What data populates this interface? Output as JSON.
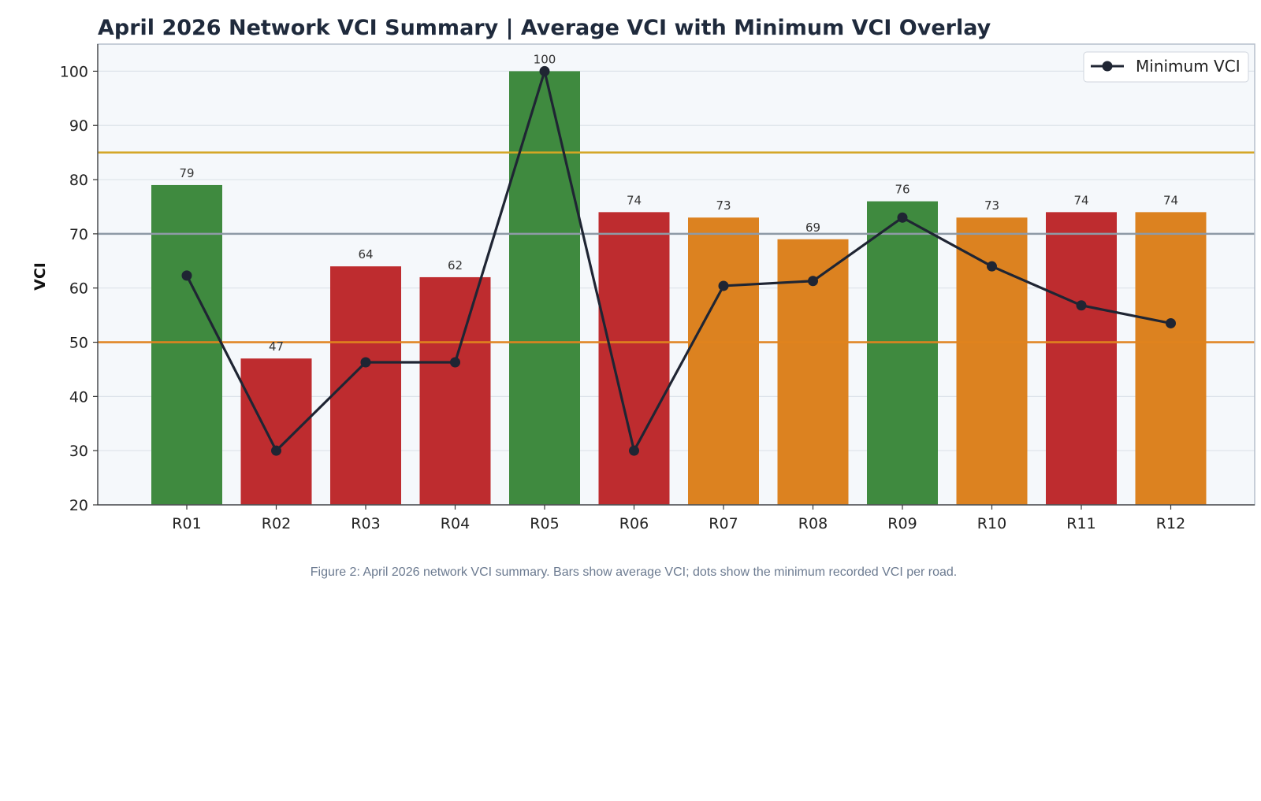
{
  "chart_data": {
    "type": "bar",
    "title": "April 2026 Network VCI Summary | Average VCI with Minimum VCI Overlay",
    "xlabel": "",
    "ylabel": "VCI",
    "ylim": [
      20,
      105
    ],
    "yticks": [
      20,
      30,
      40,
      50,
      60,
      70,
      80,
      90,
      100
    ],
    "grid": true,
    "legend_position": "top-right",
    "categories": [
      "R01",
      "R02",
      "R03",
      "R04",
      "R05",
      "R06",
      "R07",
      "R08",
      "R09",
      "R10",
      "R11",
      "R12"
    ],
    "series": [
      {
        "kind": "bar",
        "values": [
          79,
          47,
          64,
          62,
          100,
          74,
          73,
          69,
          76,
          73,
          74,
          74
        ],
        "value_labels": [
          "79",
          "47",
          "64",
          "62",
          "100",
          "74",
          "73",
          "69",
          "76",
          "73",
          "74",
          "74"
        ],
        "bar_colors": [
          "#3f8a3f",
          "#be2c2f",
          "#be2c2f",
          "#be2c2f",
          "#3f8a3f",
          "#be2c2f",
          "#dc8220",
          "#dc8220",
          "#3f8a3f",
          "#dc8220",
          "#be2c2f",
          "#dc8220"
        ]
      },
      {
        "kind": "line",
        "name": "Minimum VCI",
        "values": [
          62.3,
          30,
          46.3,
          46.3,
          100,
          30,
          60.4,
          61.3,
          73,
          64,
          56.8,
          53.5
        ],
        "color": "#1f2533"
      }
    ],
    "reference_lines": [
      {
        "value": 85,
        "color": "#d4a625"
      },
      {
        "value": 70,
        "color": "#8e9aa6"
      },
      {
        "value": 50,
        "color": "#e0831e"
      }
    ],
    "caption": "Figure 2: April 2026 network VCI summary. Bars show average VCI; dots show the minimum recorded VCI per road.",
    "colors": {
      "plot_background": "#f5f8fb",
      "plot_border": "#b6bfcc",
      "grid": "#dde3ea"
    }
  }
}
